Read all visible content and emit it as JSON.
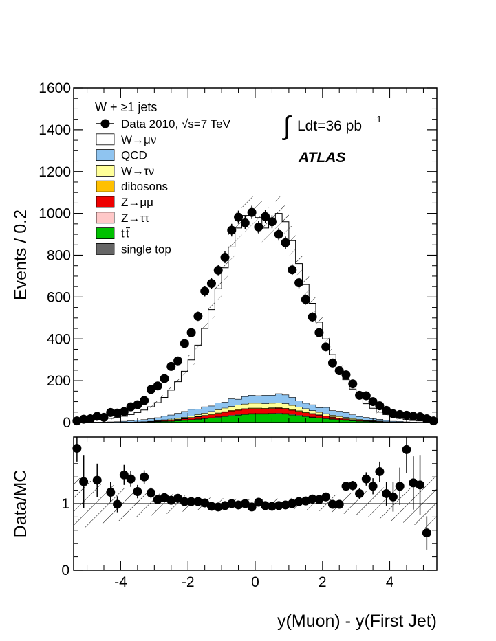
{
  "chart_data": [
    {
      "type": "histogram",
      "panel": "main",
      "ylabel": "Events / 0.2",
      "ylim": [
        0,
        1600
      ],
      "xlim": [
        -5.4,
        5.4
      ],
      "yticks": [
        0,
        200,
        400,
        600,
        800,
        1000,
        1200,
        1400,
        1600
      ],
      "title_selection": "W + ≥1 jets",
      "lumi_text": "Ldt=36 pb",
      "lumi_exponent": "-1",
      "experiment": "ATLAS",
      "legend": [
        {
          "key": "data",
          "label": "Data 2010,",
          "label_sqrt": "√s=7 TeV",
          "color": "#000000"
        },
        {
          "key": "wmunu",
          "label": "W→μν",
          "color": "#ffffff"
        },
        {
          "key": "qcd",
          "label": "QCD",
          "color": "#8fc4f0"
        },
        {
          "key": "wtaunu",
          "label": "W→τν",
          "color": "#ffff99"
        },
        {
          "key": "dibosons",
          "label": "dibosons",
          "color": "#ffc000"
        },
        {
          "key": "zmumu",
          "label": "Z→μμ",
          "color": "#ee0000"
        },
        {
          "key": "ztautau",
          "label": "Z→ττ",
          "color": "#ffc8c8"
        },
        {
          "key": "ttbar",
          "label": "t",
          "label_bar": "t",
          "color": "#00c000"
        },
        {
          "key": "singletop",
          "label": "single top",
          "color": "#666666"
        }
      ],
      "bin_edges_range": [
        -5.4,
        5.4
      ],
      "bin_width": 0.2,
      "mc_total": [
        5,
        8,
        10,
        12,
        15,
        20,
        25,
        30,
        38,
        48,
        60,
        75,
        95,
        120,
        155,
        195,
        245,
        300,
        370,
        450,
        540,
        640,
        740,
        840,
        930,
        990,
        1000,
        980,
        930,
        950,
        1000,
        960,
        870,
        760,
        660,
        570,
        480,
        400,
        325,
        260,
        205,
        160,
        120,
        90,
        68,
        50,
        38,
        28,
        20,
        14,
        10,
        8,
        5,
        3
      ],
      "components": {
        "ttbar": [
          0,
          0,
          0,
          0,
          0,
          0,
          0,
          1,
          1,
          1,
          2,
          3,
          4,
          5,
          6,
          8,
          10,
          12,
          15,
          18,
          21,
          24,
          28,
          32,
          35,
          38,
          40,
          40,
          40,
          41,
          42,
          40,
          36,
          32,
          28,
          24,
          21,
          18,
          15,
          12,
          10,
          8,
          6,
          5,
          4,
          3,
          2,
          1,
          1,
          1,
          0,
          0,
          0,
          0
        ],
        "ztautau": [
          0,
          0,
          0,
          0,
          0,
          0,
          0,
          0,
          0,
          0,
          0,
          0,
          0,
          1,
          1,
          1,
          1,
          2,
          2,
          2,
          2,
          3,
          3,
          3,
          3,
          3,
          3,
          3,
          3,
          3,
          3,
          3,
          3,
          3,
          3,
          2,
          2,
          2,
          2,
          2,
          1,
          1,
          1,
          1,
          1,
          0,
          0,
          0,
          0,
          0,
          0,
          0,
          0,
          0
        ],
        "zmumu": [
          0,
          0,
          0,
          0,
          0,
          0,
          0,
          0,
          0,
          1,
          1,
          1,
          2,
          3,
          4,
          5,
          6,
          8,
          10,
          12,
          14,
          16,
          18,
          20,
          21,
          22,
          23,
          23,
          22,
          23,
          23,
          22,
          20,
          18,
          16,
          14,
          12,
          10,
          8,
          6,
          5,
          4,
          3,
          2,
          1,
          1,
          1,
          0,
          0,
          0,
          0,
          0,
          0,
          0
        ],
        "dibosons": [
          0,
          0,
          0,
          0,
          0,
          0,
          0,
          0,
          0,
          0,
          0,
          0,
          1,
          1,
          1,
          1,
          2,
          2,
          2,
          2,
          3,
          3,
          3,
          3,
          3,
          3,
          3,
          3,
          3,
          3,
          3,
          3,
          3,
          3,
          3,
          3,
          2,
          2,
          2,
          2,
          2,
          1,
          1,
          1,
          1,
          1,
          0,
          0,
          0,
          0,
          0,
          0,
          0,
          0
        ],
        "wtaunu": [
          0,
          0,
          0,
          0,
          0,
          0,
          0,
          0,
          1,
          1,
          1,
          2,
          2,
          3,
          4,
          5,
          6,
          7,
          9,
          11,
          13,
          15,
          17,
          19,
          21,
          22,
          23,
          23,
          22,
          22,
          23,
          22,
          20,
          18,
          16,
          14,
          12,
          10,
          8,
          7,
          6,
          5,
          4,
          3,
          2,
          2,
          1,
          1,
          1,
          0,
          0,
          0,
          0,
          0
        ],
        "qcd": [
          1,
          1,
          1,
          2,
          2,
          3,
          4,
          5,
          6,
          8,
          10,
          12,
          14,
          17,
          20,
          24,
          28,
          32,
          26,
          30,
          26,
          32,
          28,
          36,
          28,
          36,
          38,
          36,
          40,
          38,
          44,
          42,
          38,
          30,
          26,
          28,
          22,
          30,
          22,
          25,
          24,
          18,
          14,
          12,
          10,
          8,
          6,
          4,
          3,
          2,
          2,
          1,
          1,
          0
        ]
      },
      "data_points": [
        8,
        16,
        18,
        30,
        25,
        48,
        45,
        52,
        75,
        85,
        105,
        158,
        175,
        210,
        268,
        295,
        378,
        430,
        508,
        628,
        665,
        728,
        790,
        920,
        982,
        955,
        1005,
        935,
        985,
        960,
        900,
        860,
        730,
        668,
        588,
        505,
        430,
        362,
        285,
        248,
        228,
        185,
        130,
        128,
        100,
        80,
        58,
        42,
        38,
        35,
        30,
        28,
        18,
        8
      ]
    },
    {
      "type": "ratio",
      "panel": "ratio",
      "ylabel": "Data/MC",
      "ylim": [
        0,
        2
      ],
      "yticks": [
        0,
        1
      ],
      "xlabel": "y(Muon) - y(First Jet)",
      "xticks": [
        -4,
        -2,
        0,
        2,
        4
      ],
      "ratio_points": [
        1.83,
        1.33,
        null,
        1.35,
        null,
        1.17,
        0.99,
        1.43,
        1.37,
        1.18,
        1.4,
        1.16,
        1.06,
        1.09,
        1.05,
        1.08,
        1.03,
        1.03,
        1.03,
        1.01,
        0.96,
        0.95,
        0.97,
        1.0,
        0.98,
        1.0,
        0.95,
        1.02,
        0.97,
        0.96,
        0.97,
        0.98,
        1.0,
        1.03,
        1.04,
        1.07,
        1.06,
        1.1,
        0.99,
        0.99,
        1.26,
        1.27,
        1.15,
        1.37,
        1.26,
        1.48,
        1.15,
        1.1,
        1.26,
        1.81,
        1.31,
        1.28,
        0.56,
        null
      ],
      "ratio_errors": [
        0.2,
        0.4,
        0,
        0.25,
        0,
        0.15,
        0.12,
        0.15,
        0.12,
        0.1,
        0.1,
        0.08,
        0.06,
        0.05,
        0.05,
        0.04,
        0.04,
        0.03,
        0.03,
        0.03,
        0.03,
        0.02,
        0.02,
        0.02,
        0.02,
        0.02,
        0.02,
        0.02,
        0.02,
        0.02,
        0.02,
        0.02,
        0.02,
        0.02,
        0.03,
        0.03,
        0.03,
        0.04,
        0.04,
        0.05,
        0.06,
        0.07,
        0.08,
        0.1,
        0.12,
        0.15,
        0.18,
        0.22,
        0.28,
        0.35,
        0.4,
        0.45,
        0.25,
        0
      ]
    }
  ]
}
